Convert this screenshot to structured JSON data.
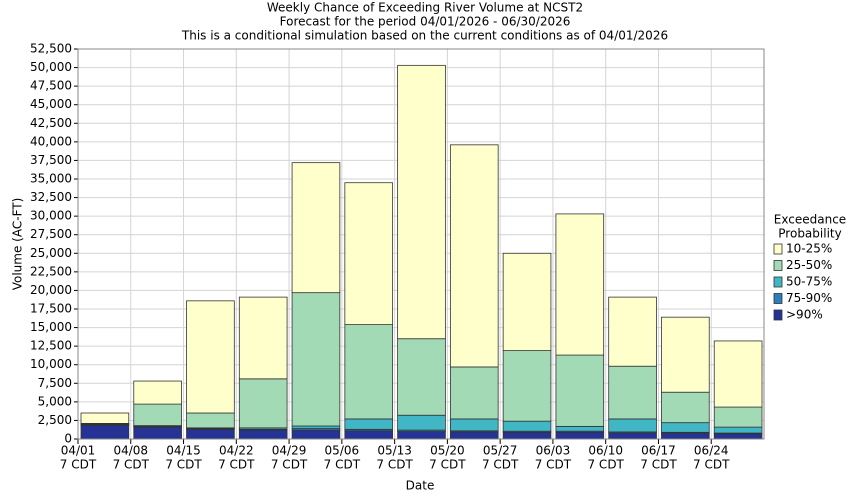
{
  "chart_data": {
    "type": "stacked_bar",
    "title": [
      "Weekly Chance of Exceeding River Volume at NCST2",
      "Forecast for the period 04/01/2026 - 06/30/2026",
      "This is a conditional simulation based on the current conditions as of 04/01/2026"
    ],
    "xlabel": "Date",
    "ylabel": "Volume (AC-FT)",
    "legend_title": [
      "Exceedance",
      "Probability"
    ],
    "categories": [
      [
        "04/01",
        "7 CDT"
      ],
      [
        "04/08",
        "7 CDT"
      ],
      [
        "04/15",
        "7 CDT"
      ],
      [
        "04/22",
        "7 CDT"
      ],
      [
        "04/29",
        "7 CDT"
      ],
      [
        "05/06",
        "7 CDT"
      ],
      [
        "05/13",
        "7 CDT"
      ],
      [
        "05/20",
        "7 CDT"
      ],
      [
        "05/27",
        "7 CDT"
      ],
      [
        "06/03",
        "7 CDT"
      ],
      [
        "06/10",
        "7 CDT"
      ],
      [
        "06/17",
        "7 CDT"
      ],
      [
        "06/24",
        "7 CDT"
      ]
    ],
    "series": [
      {
        "name": ">90%",
        "color": "#253494",
        "values": [
          1850,
          1600,
          1300,
          1200,
          1200,
          1100,
          1000,
          950,
          900,
          900,
          800,
          800,
          700
        ]
      },
      {
        "name": "75-90%",
        "color": "#2c7fb8",
        "values": [
          100,
          100,
          100,
          100,
          200,
          200,
          200,
          150,
          150,
          150,
          150,
          100,
          100
        ]
      },
      {
        "name": "50-75%",
        "color": "#41b6c4",
        "values": [
          50,
          100,
          100,
          200,
          350,
          1400,
          2000,
          1600,
          1350,
          650,
          1750,
          1300,
          800
        ]
      },
      {
        "name": "25-50%",
        "color": "#a1dab4",
        "values": [
          100,
          2900,
          2000,
          6600,
          17950,
          12700,
          10300,
          7000,
          9500,
          9600,
          7100,
          4100,
          2700
        ]
      },
      {
        "name": "10-25%",
        "color": "#ffffcc",
        "values": [
          1400,
          3100,
          15100,
          11000,
          17500,
          19100,
          36800,
          29900,
          13100,
          19000,
          9300,
          10100,
          8900
        ]
      }
    ],
    "ylim": [
      0,
      52500
    ],
    "yticks": [
      0,
      {
        "value": 2500,
        "label": "2,500"
      },
      {
        "value": 5000,
        "label": "5,000"
      },
      {
        "value": 7500,
        "label": "7,500"
      },
      {
        "value": 10000,
        "label": "10,000"
      },
      {
        "value": 12500,
        "label": "12,500"
      },
      {
        "value": 15000,
        "label": "15,000"
      },
      {
        "value": 17500,
        "label": "17,500"
      },
      {
        "value": 20000,
        "label": "20,000"
      },
      {
        "value": 22500,
        "label": "22,500"
      },
      {
        "value": 25000,
        "label": "25,000"
      },
      {
        "value": 27500,
        "label": "27,500"
      },
      {
        "value": 30000,
        "label": "30,000"
      },
      {
        "value": 32500,
        "label": "32,500"
      },
      {
        "value": 35000,
        "label": "35,000"
      },
      {
        "value": 37500,
        "label": "37,500"
      },
      {
        "value": 40000,
        "label": "40,000"
      },
      {
        "value": 42500,
        "label": "42,500"
      },
      {
        "value": 45000,
        "label": "45,000"
      },
      {
        "value": 47500,
        "label": "47,500"
      },
      {
        "value": 50000,
        "label": "50,000"
      },
      {
        "value": 52500,
        "label": "52,500"
      }
    ],
    "grid": true,
    "legend": "right"
  }
}
